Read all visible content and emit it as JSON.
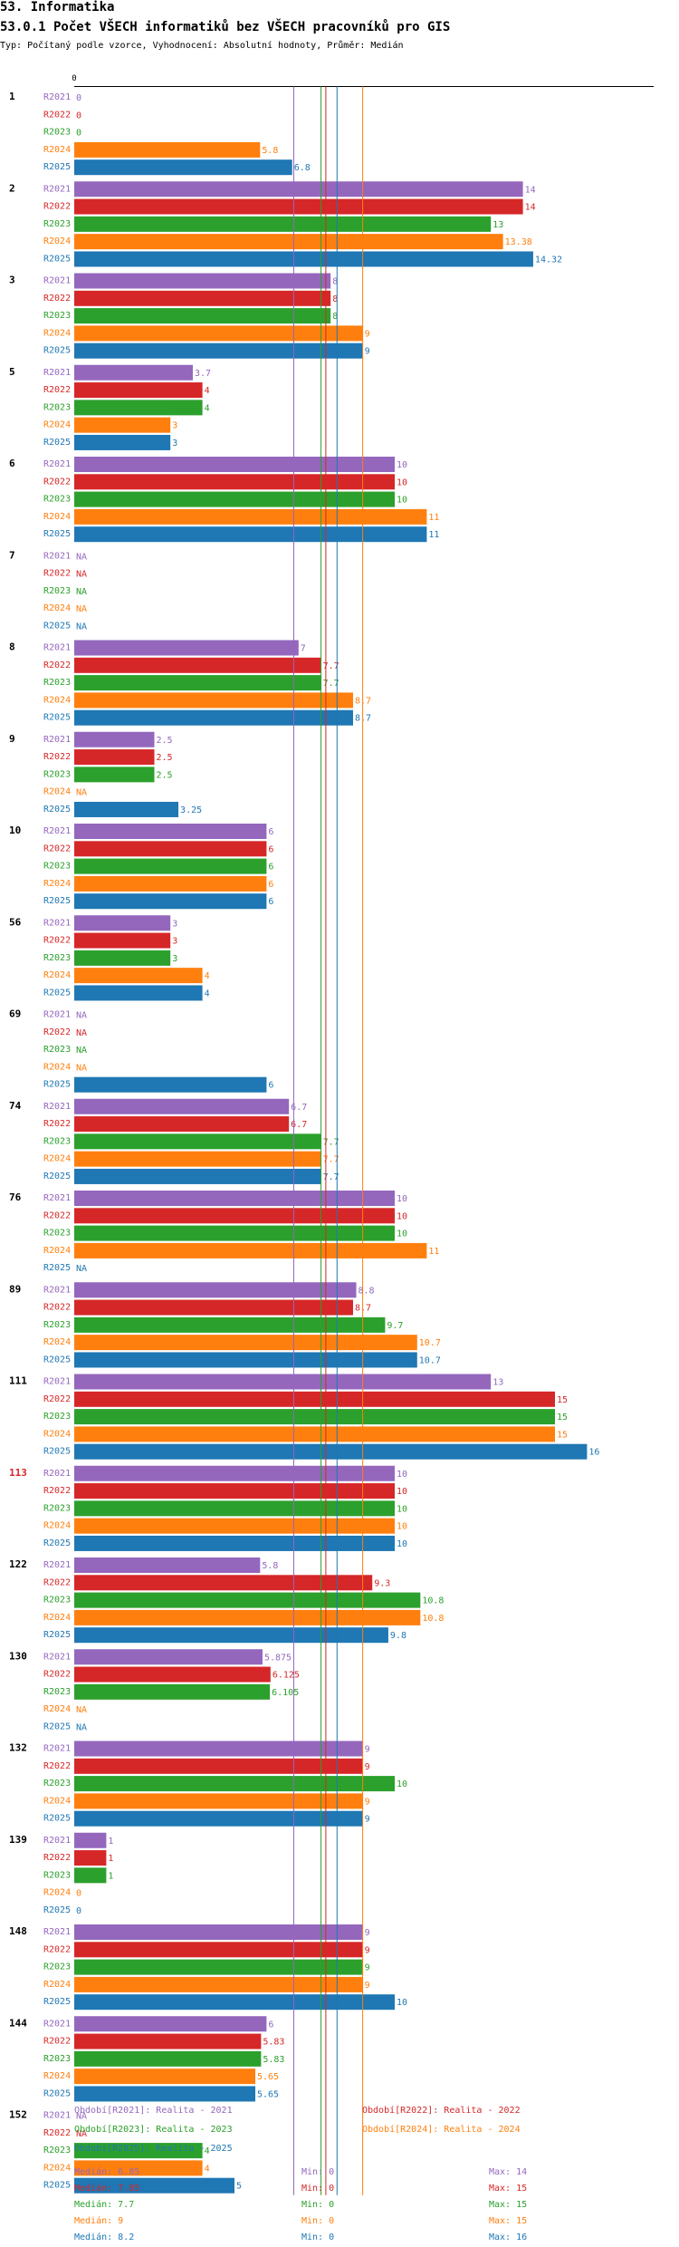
{
  "header": {
    "section": "53. Informatika",
    "title": "53.0.1 Počet VŠECH informatiků bez VŠECH pracovníků pro GIS",
    "subtitle": "Typ: Počítaný podle vzorce, Vyhodnocení: Absolutní hodnoty, Průměr: Medián"
  },
  "colors": {
    "R2021": "#9467bd",
    "R2022": "#d62728",
    "R2023": "#2ca02c",
    "R2024": "#ff7f0e",
    "R2025": "#1f77b4"
  },
  "chart_data": {
    "type": "bar",
    "orientation": "horizontal",
    "title": "53.0.1 Počet VŠECH informatiků bez VŠECH pracovníků pro GIS",
    "axis_origin_label": "0",
    "xlim": [
      0,
      16
    ],
    "series_names": [
      "R2021",
      "R2022",
      "R2023",
      "R2024",
      "R2025"
    ],
    "groups": [
      {
        "label": "1",
        "highlight": false,
        "values": [
          0,
          0,
          0,
          5.8,
          6.8
        ],
        "labels": [
          "0",
          "0",
          "0",
          "5.8",
          "6.8"
        ]
      },
      {
        "label": "2",
        "highlight": false,
        "values": [
          14,
          14,
          13,
          13.38,
          14.32
        ],
        "labels": [
          "14",
          "14",
          "13",
          "13.38",
          "14.32"
        ]
      },
      {
        "label": "3",
        "highlight": false,
        "values": [
          8,
          8,
          8,
          9,
          9
        ],
        "labels": [
          "8",
          "8",
          "8",
          "9",
          "9"
        ]
      },
      {
        "label": "5",
        "highlight": false,
        "values": [
          3.7,
          4,
          4,
          3,
          3
        ],
        "labels": [
          "3.7",
          "4",
          "4",
          "3",
          "3"
        ]
      },
      {
        "label": "6",
        "highlight": false,
        "values": [
          10,
          10,
          10,
          11,
          11
        ],
        "labels": [
          "10",
          "10",
          "10",
          "11",
          "11"
        ]
      },
      {
        "label": "7",
        "highlight": false,
        "values": [
          null,
          null,
          null,
          null,
          null
        ],
        "labels": [
          "NA",
          "NA",
          "NA",
          "NA",
          "NA"
        ]
      },
      {
        "label": "8",
        "highlight": false,
        "values": [
          7,
          7.7,
          7.7,
          8.7,
          8.7
        ],
        "labels": [
          "7",
          "7.7",
          "7.7",
          "8.7",
          "8.7"
        ]
      },
      {
        "label": "9",
        "highlight": false,
        "values": [
          2.5,
          2.5,
          2.5,
          null,
          3.25
        ],
        "labels": [
          "2.5",
          "2.5",
          "2.5",
          "NA",
          "3.25"
        ]
      },
      {
        "label": "10",
        "highlight": false,
        "values": [
          6,
          6,
          6,
          6,
          6
        ],
        "labels": [
          "6",
          "6",
          "6",
          "6",
          "6"
        ]
      },
      {
        "label": "56",
        "highlight": false,
        "values": [
          3,
          3,
          3,
          4,
          4
        ],
        "labels": [
          "3",
          "3",
          "3",
          "4",
          "4"
        ]
      },
      {
        "label": "69",
        "highlight": false,
        "values": [
          null,
          null,
          null,
          null,
          6
        ],
        "labels": [
          "NA",
          "NA",
          "NA",
          "NA",
          "6"
        ]
      },
      {
        "label": "74",
        "highlight": false,
        "values": [
          6.7,
          6.7,
          7.7,
          7.7,
          7.7
        ],
        "labels": [
          "6.7",
          "6.7",
          "7.7",
          "7.7",
          "7.7"
        ]
      },
      {
        "label": "76",
        "highlight": false,
        "values": [
          10,
          10,
          10,
          11,
          null
        ],
        "labels": [
          "10",
          "10",
          "10",
          "11",
          "NA"
        ]
      },
      {
        "label": "89",
        "highlight": false,
        "values": [
          8.8,
          8.7,
          9.7,
          10.7,
          10.7
        ],
        "labels": [
          "8.8",
          "8.7",
          "9.7",
          "10.7",
          "10.7"
        ]
      },
      {
        "label": "111",
        "highlight": false,
        "values": [
          13,
          15,
          15,
          15,
          16
        ],
        "labels": [
          "13",
          "15",
          "15",
          "15",
          "16"
        ]
      },
      {
        "label": "113",
        "highlight": true,
        "values": [
          10,
          10,
          10,
          10,
          10
        ],
        "labels": [
          "10",
          "10",
          "10",
          "10",
          "10"
        ]
      },
      {
        "label": "122",
        "highlight": false,
        "values": [
          5.8,
          9.3,
          10.8,
          10.8,
          9.8
        ],
        "labels": [
          "5.8",
          "9.3",
          "10.8",
          "10.8",
          "9.8"
        ]
      },
      {
        "label": "130",
        "highlight": false,
        "values": [
          5.875,
          6.125,
          6.105,
          null,
          null
        ],
        "labels": [
          "5.875",
          "6.125",
          "6.105",
          "NA",
          "NA"
        ]
      },
      {
        "label": "132",
        "highlight": false,
        "values": [
          9,
          9,
          10,
          9,
          9
        ],
        "labels": [
          "9",
          "9",
          "10",
          "9",
          "9"
        ]
      },
      {
        "label": "139",
        "highlight": false,
        "values": [
          1,
          1,
          1,
          0,
          0
        ],
        "labels": [
          "1",
          "1",
          "1",
          "0",
          "0"
        ]
      },
      {
        "label": "148",
        "highlight": false,
        "values": [
          9,
          9,
          9,
          9,
          10
        ],
        "labels": [
          "9",
          "9",
          "9",
          "9",
          "10"
        ]
      },
      {
        "label": "144",
        "highlight": false,
        "values": [
          6,
          5.83,
          5.83,
          5.65,
          5.65
        ],
        "labels": [
          "6",
          "5.83",
          "5.83",
          "5.65",
          "5.65"
        ]
      },
      {
        "label": "152",
        "highlight": false,
        "values": [
          null,
          null,
          4,
          4,
          5
        ],
        "labels": [
          "NA",
          "NA",
          "4",
          "4",
          "5"
        ]
      }
    ],
    "median_lines": [
      {
        "series": "R2021",
        "value": 6.85
      },
      {
        "series": "R2022",
        "value": 7.85
      },
      {
        "series": "R2023",
        "value": 7.7
      },
      {
        "series": "R2024",
        "value": 9
      },
      {
        "series": "R2025",
        "value": 8.2
      }
    ]
  },
  "legend": {
    "periods": [
      {
        "series": "R2021",
        "text": "Období[R2021]: Realita - 2021"
      },
      {
        "series": "R2022",
        "text": "Období[R2022]: Realita - 2022"
      },
      {
        "series": "R2023",
        "text": "Období[R2023]: Realita - 2023"
      },
      {
        "series": "R2024",
        "text": "Období[R2024]: Realita - 2024"
      },
      {
        "series": "R2025",
        "text": "Období[R2025]: Realita - 2025"
      }
    ],
    "stats": [
      {
        "series": "R2021",
        "median": "Medián: 6.85",
        "min": "Min: 0",
        "max": "Max: 14"
      },
      {
        "series": "R2022",
        "median": "Medián: 7.85",
        "min": "Min: 0",
        "max": "Max: 15"
      },
      {
        "series": "R2023",
        "median": "Medián: 7.7",
        "min": "Min: 0",
        "max": "Max: 15"
      },
      {
        "series": "R2024",
        "median": "Medián: 9",
        "min": "Min: 0",
        "max": "Max: 15"
      },
      {
        "series": "R2025",
        "median": "Medián: 8.2",
        "min": "Min: 0",
        "max": "Max: 16"
      }
    ]
  }
}
